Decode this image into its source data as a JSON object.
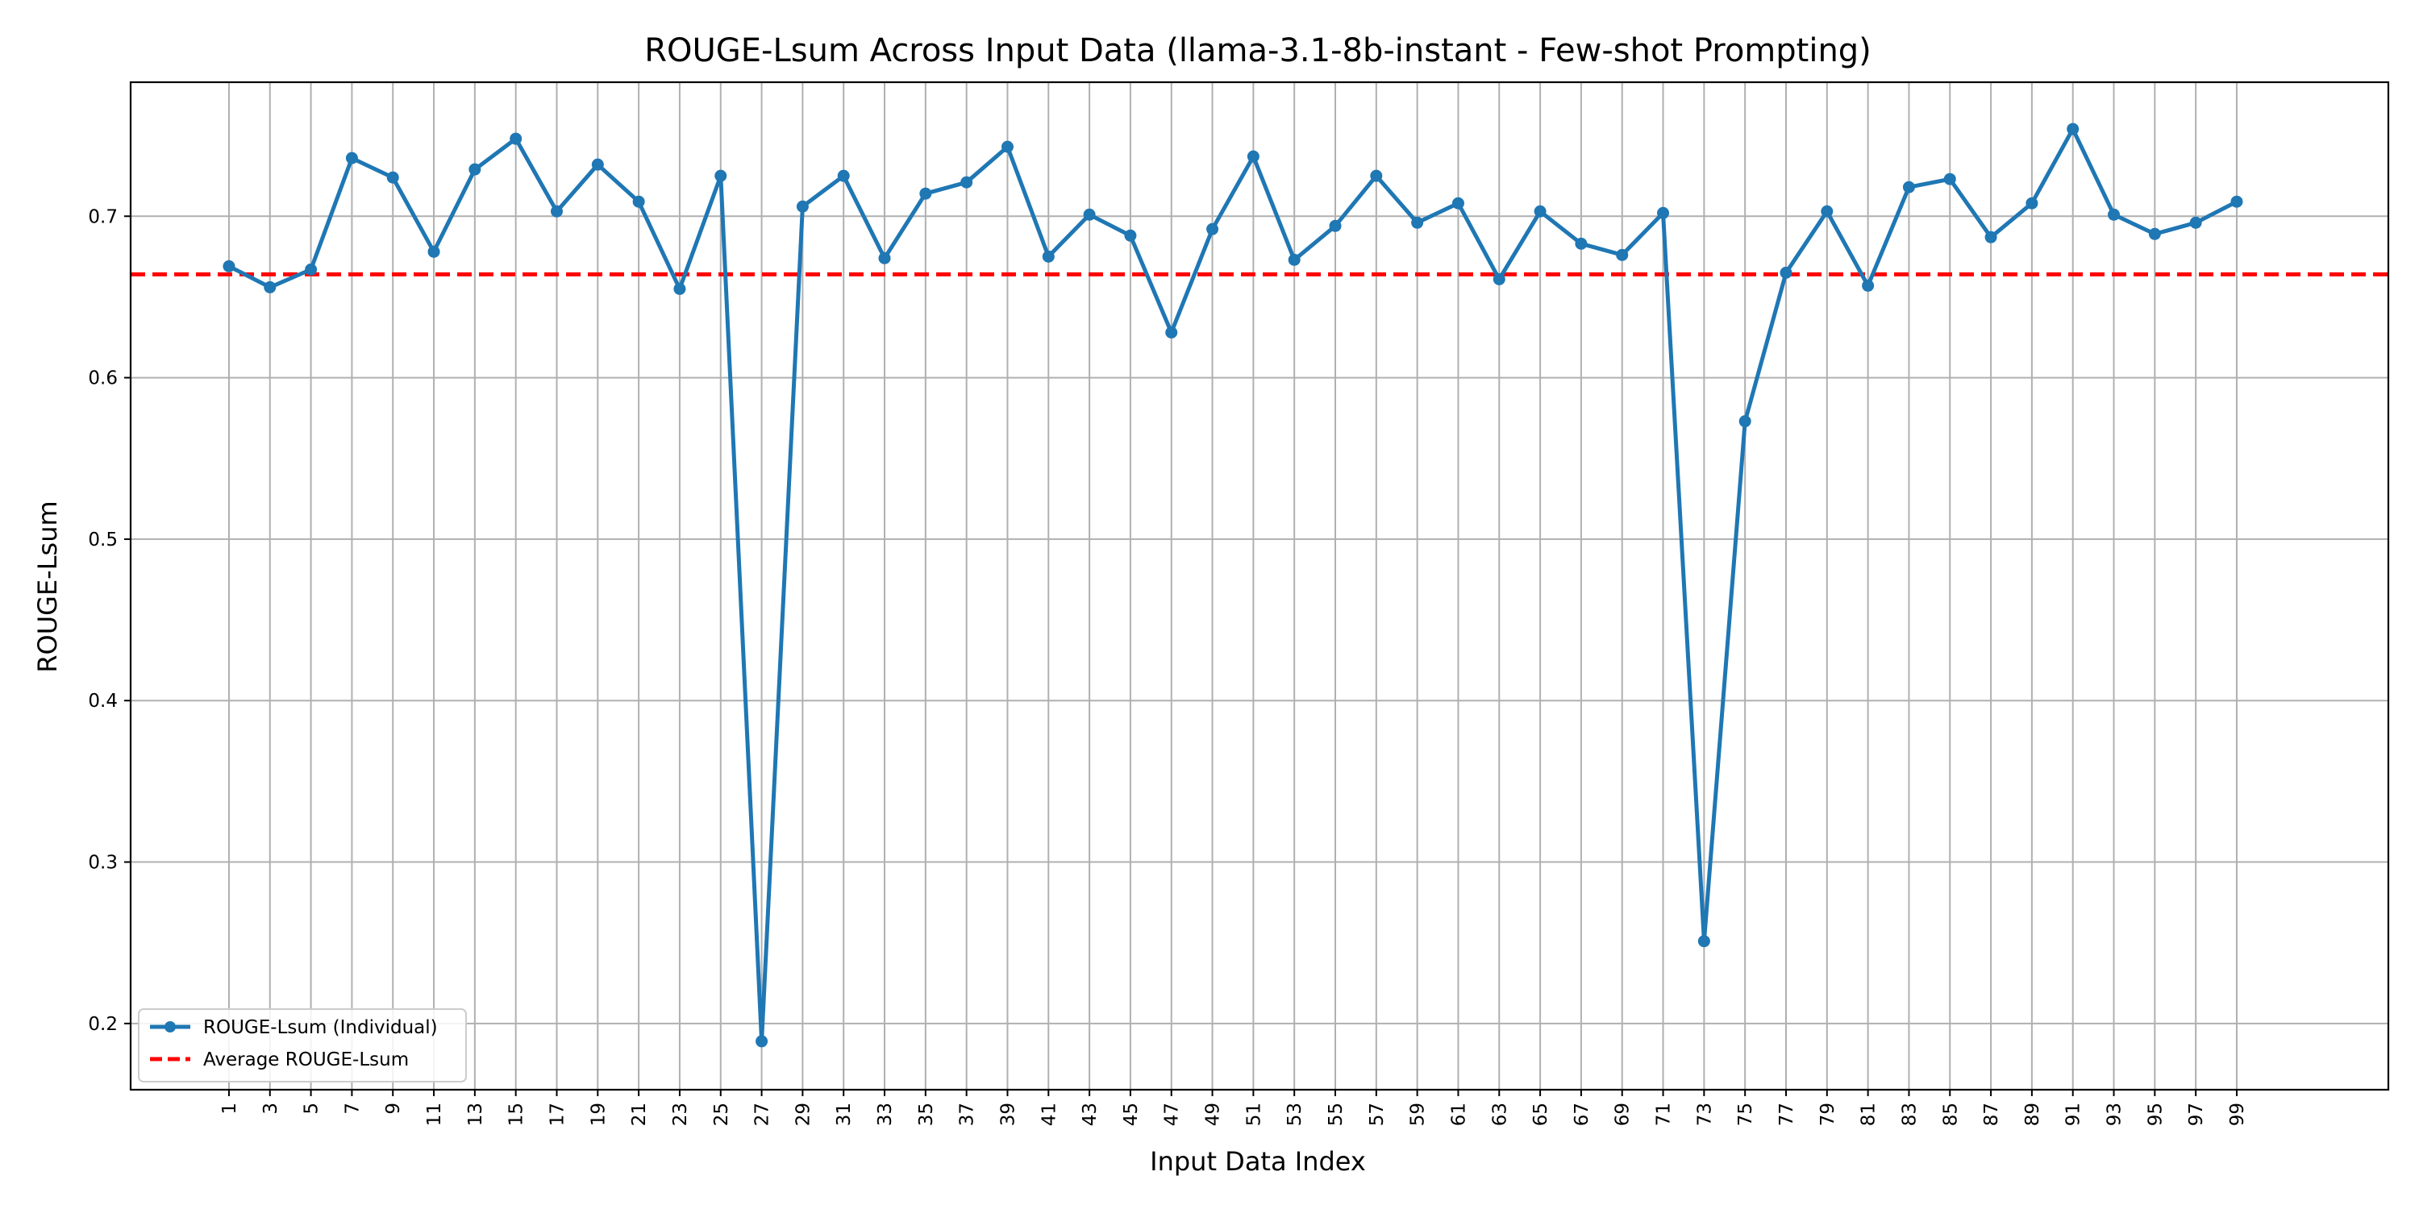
{
  "chart_data": {
    "type": "line",
    "title": "ROUGE-Lsum Across Input Data (llama-3.1-8b-instant - Few-shot Prompting)",
    "xlabel": "Input Data Index",
    "ylabel": "ROUGE-Lsum",
    "x": [
      1,
      3,
      5,
      7,
      9,
      11,
      13,
      15,
      17,
      19,
      21,
      23,
      25,
      27,
      29,
      31,
      33,
      35,
      37,
      39,
      41,
      43,
      45,
      47,
      49,
      51,
      53,
      55,
      57,
      59,
      61,
      63,
      65,
      67,
      69,
      71,
      73,
      75,
      77,
      79,
      81,
      83,
      85,
      87,
      89,
      91,
      93,
      95,
      97,
      99
    ],
    "xticks": [
      "1",
      "3",
      "5",
      "7",
      "9",
      "11",
      "13",
      "15",
      "17",
      "19",
      "21",
      "23",
      "25",
      "27",
      "29",
      "31",
      "33",
      "35",
      "37",
      "39",
      "41",
      "43",
      "45",
      "47",
      "49",
      "51",
      "53",
      "55",
      "57",
      "59",
      "61",
      "63",
      "65",
      "67",
      "69",
      "71",
      "73",
      "75",
      "77",
      "79",
      "81",
      "83",
      "85",
      "87",
      "89",
      "91",
      "93",
      "95",
      "97",
      "99"
    ],
    "yticks": [
      "0.2",
      "0.3",
      "0.4",
      "0.5",
      "0.6",
      "0.7"
    ],
    "ytick_values": [
      0.2,
      0.3,
      0.4,
      0.5,
      0.6,
      0.7
    ],
    "xlim": [
      -3.8,
      106.4
    ],
    "ylim": [
      0.159,
      0.783
    ],
    "grid": true,
    "legend_position": "lower-left",
    "series": [
      {
        "name": "ROUGE-Lsum (Individual)",
        "color": "#1f77b4",
        "style": "solid-with-markers",
        "values": [
          0.669,
          0.656,
          0.667,
          0.736,
          0.724,
          0.678,
          0.729,
          0.748,
          0.703,
          0.732,
          0.709,
          0.655,
          0.725,
          0.189,
          0.706,
          0.725,
          0.674,
          0.714,
          0.721,
          0.743,
          0.675,
          0.701,
          0.688,
          0.628,
          0.692,
          0.737,
          0.673,
          0.694,
          0.725,
          0.696,
          0.708,
          0.661,
          0.703,
          0.683,
          0.676,
          0.702,
          0.251,
          0.573,
          0.665,
          0.703,
          0.657,
          0.718,
          0.723,
          0.687,
          0.708,
          0.754,
          0.701,
          0.689,
          0.696,
          0.709
        ]
      },
      {
        "name": "Average ROUGE-Lsum",
        "color": "#ff0000",
        "style": "dashed",
        "value": 0.664
      }
    ]
  }
}
